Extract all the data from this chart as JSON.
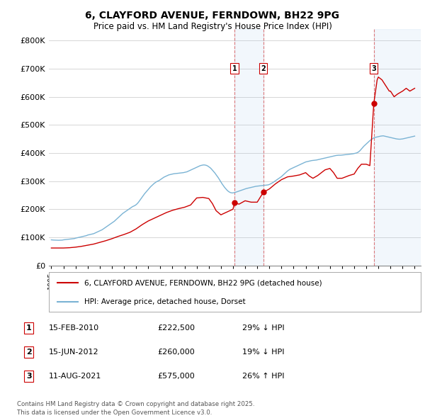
{
  "title": "6, CLAYFORD AVENUE, FERNDOWN, BH22 9PG",
  "subtitle": "Price paid vs. HM Land Registry's House Price Index (HPI)",
  "background_color": "#ffffff",
  "grid_color": "#d0d0d0",
  "ylim": [
    0,
    840000
  ],
  "yticks": [
    0,
    100000,
    200000,
    300000,
    400000,
    500000,
    600000,
    700000,
    800000
  ],
  "ytick_labels": [
    "£0",
    "£100K",
    "£200K",
    "£300K",
    "£400K",
    "£500K",
    "£600K",
    "£700K",
    "£800K"
  ],
  "hpi_color": "#7ab3d4",
  "sale_color": "#cc0000",
  "vline_color": "#cc0000",
  "span_color": "#ddeeff",
  "transactions": [
    {
      "id": 1,
      "date_num": 2010.12,
      "price": 222500
    },
    {
      "id": 2,
      "date_num": 2012.5,
      "price": 260000
    },
    {
      "id": 3,
      "date_num": 2021.62,
      "price": 575000
    }
  ],
  "hpi_x": [
    1995.0,
    1995.1,
    1995.2,
    1995.3,
    1995.4,
    1995.5,
    1995.6,
    1995.7,
    1995.8,
    1995.9,
    1996.0,
    1996.1,
    1996.2,
    1996.3,
    1996.4,
    1996.5,
    1996.6,
    1996.7,
    1996.8,
    1996.9,
    1997.0,
    1997.1,
    1997.2,
    1997.3,
    1997.4,
    1997.5,
    1997.6,
    1997.7,
    1997.8,
    1997.9,
    1998.0,
    1998.1,
    1998.2,
    1998.3,
    1998.4,
    1998.5,
    1998.6,
    1998.7,
    1998.8,
    1998.9,
    1999.0,
    1999.1,
    1999.2,
    1999.3,
    1999.4,
    1999.5,
    1999.6,
    1999.7,
    1999.8,
    1999.9,
    2000.0,
    2000.1,
    2000.2,
    2000.3,
    2000.4,
    2000.5,
    2000.6,
    2000.7,
    2000.8,
    2000.9,
    2001.0,
    2001.1,
    2001.2,
    2001.3,
    2001.4,
    2001.5,
    2001.6,
    2001.7,
    2001.8,
    2001.9,
    2002.0,
    2002.1,
    2002.2,
    2002.3,
    2002.4,
    2002.5,
    2002.6,
    2002.7,
    2002.8,
    2002.9,
    2003.0,
    2003.1,
    2003.2,
    2003.3,
    2003.4,
    2003.5,
    2003.6,
    2003.7,
    2003.8,
    2003.9,
    2004.0,
    2004.1,
    2004.2,
    2004.3,
    2004.4,
    2004.5,
    2004.6,
    2004.7,
    2004.8,
    2004.9,
    2005.0,
    2005.1,
    2005.2,
    2005.3,
    2005.4,
    2005.5,
    2005.6,
    2005.7,
    2005.8,
    2005.9,
    2006.0,
    2006.1,
    2006.2,
    2006.3,
    2006.4,
    2006.5,
    2006.6,
    2006.7,
    2006.8,
    2006.9,
    2007.0,
    2007.1,
    2007.2,
    2007.3,
    2007.4,
    2007.5,
    2007.6,
    2007.7,
    2007.8,
    2007.9,
    2008.0,
    2008.1,
    2008.2,
    2008.3,
    2008.4,
    2008.5,
    2008.6,
    2008.7,
    2008.8,
    2008.9,
    2009.0,
    2009.1,
    2009.2,
    2009.3,
    2009.4,
    2009.5,
    2009.6,
    2009.7,
    2009.8,
    2009.9,
    2010.0,
    2010.1,
    2010.2,
    2010.3,
    2010.4,
    2010.5,
    2010.6,
    2010.7,
    2010.8,
    2010.9,
    2011.0,
    2011.1,
    2011.2,
    2011.3,
    2011.4,
    2011.5,
    2011.6,
    2011.7,
    2011.8,
    2011.9,
    2012.0,
    2012.1,
    2012.2,
    2012.3,
    2012.4,
    2012.5,
    2012.6,
    2012.7,
    2012.8,
    2012.9,
    2013.0,
    2013.1,
    2013.2,
    2013.3,
    2013.4,
    2013.5,
    2013.6,
    2013.7,
    2013.8,
    2013.9,
    2014.0,
    2014.1,
    2014.2,
    2014.3,
    2014.4,
    2014.5,
    2014.6,
    2014.7,
    2014.8,
    2014.9,
    2015.0,
    2015.1,
    2015.2,
    2015.3,
    2015.4,
    2015.5,
    2015.6,
    2015.7,
    2015.8,
    2015.9,
    2016.0,
    2016.1,
    2016.2,
    2016.3,
    2016.4,
    2016.5,
    2016.6,
    2016.7,
    2016.8,
    2016.9,
    2017.0,
    2017.1,
    2017.2,
    2017.3,
    2017.4,
    2017.5,
    2017.6,
    2017.7,
    2017.8,
    2017.9,
    2018.0,
    2018.1,
    2018.2,
    2018.3,
    2018.4,
    2018.5,
    2018.6,
    2018.7,
    2018.8,
    2018.9,
    2019.0,
    2019.1,
    2019.2,
    2019.3,
    2019.4,
    2019.5,
    2019.6,
    2019.7,
    2019.8,
    2019.9,
    2020.0,
    2020.1,
    2020.2,
    2020.3,
    2020.4,
    2020.5,
    2020.6,
    2020.7,
    2020.8,
    2020.9,
    2021.0,
    2021.1,
    2021.2,
    2021.3,
    2021.4,
    2021.5,
    2021.6,
    2021.7,
    2021.8,
    2021.9,
    2022.0,
    2022.1,
    2022.2,
    2022.3,
    2022.4,
    2022.5,
    2022.6,
    2022.7,
    2022.8,
    2022.9,
    2023.0,
    2023.1,
    2023.2,
    2023.3,
    2023.4,
    2023.5,
    2023.6,
    2023.7,
    2023.8,
    2023.9,
    2024.0,
    2024.1,
    2024.2,
    2024.3,
    2024.4,
    2024.5,
    2024.6,
    2024.7,
    2024.8,
    2024.9,
    2025.0
  ],
  "hpi_y": [
    91000,
    90500,
    90200,
    90000,
    89800,
    89700,
    89500,
    89600,
    89800,
    90000,
    91000,
    91500,
    92000,
    92500,
    93000,
    93500,
    94000,
    94500,
    95000,
    95500,
    97000,
    98000,
    99000,
    100000,
    101000,
    102000,
    103000,
    104000,
    105000,
    106000,
    108000,
    109000,
    110000,
    111000,
    112000,
    113000,
    115000,
    117000,
    119000,
    121000,
    123000,
    125000,
    127000,
    130000,
    133000,
    136000,
    139000,
    142000,
    145000,
    148000,
    151000,
    154000,
    157000,
    161000,
    165000,
    169000,
    173000,
    177000,
    181000,
    185000,
    188000,
    191000,
    194000,
    197000,
    200000,
    203000,
    206000,
    209000,
    211000,
    213000,
    216000,
    220000,
    225000,
    231000,
    237000,
    243000,
    249000,
    255000,
    260000,
    265000,
    270000,
    275000,
    280000,
    284000,
    288000,
    292000,
    295000,
    298000,
    300000,
    302000,
    305000,
    308000,
    311000,
    314000,
    316000,
    318000,
    320000,
    322000,
    323000,
    324000,
    325000,
    326000,
    326500,
    327000,
    327500,
    328000,
    328500,
    329000,
    329500,
    330000,
    331000,
    332000,
    333000,
    335000,
    337000,
    339000,
    341000,
    343000,
    345000,
    347000,
    349000,
    351000,
    353000,
    355000,
    356000,
    357000,
    357500,
    357000,
    356000,
    354000,
    351000,
    348000,
    344000,
    339000,
    334000,
    329000,
    323000,
    317000,
    311000,
    304000,
    297000,
    290000,
    284000,
    278000,
    273000,
    268000,
    264000,
    261000,
    259000,
    258000,
    258000,
    259000,
    260000,
    261500,
    263000,
    264500,
    266000,
    267500,
    269000,
    270500,
    272000,
    273500,
    274500,
    275500,
    276500,
    277500,
    278500,
    279500,
    280500,
    281500,
    282000,
    282500,
    283000,
    283500,
    284000,
    284500,
    285000,
    285500,
    286000,
    286500,
    288000,
    290000,
    292500,
    295000,
    298000,
    301000,
    304000,
    307000,
    310000,
    313000,
    316000,
    320000,
    324000,
    328000,
    332000,
    336000,
    339000,
    342000,
    344000,
    346000,
    348000,
    350000,
    352000,
    354000,
    356000,
    358000,
    360000,
    362000,
    364000,
    366000,
    368000,
    369000,
    370000,
    371000,
    372000,
    373000,
    373500,
    374000,
    374500,
    375000,
    376000,
    377000,
    378000,
    379000,
    380000,
    381000,
    382000,
    383000,
    384000,
    385000,
    386000,
    387000,
    388000,
    389000,
    390000,
    391000,
    391500,
    392000,
    392000,
    392000,
    392500,
    393000,
    393500,
    394000,
    394500,
    395000,
    395500,
    396000,
    396500,
    397000,
    398000,
    399000,
    400000,
    402000,
    405000,
    409000,
    414000,
    419000,
    424000,
    428000,
    432000,
    436000,
    440000,
    444000,
    447000,
    450000,
    453000,
    455000,
    456000,
    457000,
    458000,
    459000,
    460000,
    460500,
    461000,
    460000,
    459000,
    458000,
    457000,
    456000,
    455000,
    454000,
    453000,
    452000,
    451000,
    450000,
    449500,
    449000,
    449000,
    449500,
    450000,
    451000,
    452000,
    453000,
    454000,
    455000,
    456000,
    457000,
    458000,
    459000,
    460000
  ],
  "sale_x": [
    1995.0,
    1995.5,
    1996.0,
    1996.5,
    1997.0,
    1997.5,
    1998.0,
    1998.5,
    1999.0,
    1999.5,
    2000.0,
    2000.5,
    2001.0,
    2001.5,
    2002.0,
    2002.5,
    2003.0,
    2003.5,
    2004.0,
    2004.5,
    2005.0,
    2005.5,
    2006.0,
    2006.5,
    2007.0,
    2007.5,
    2008.0,
    2008.3,
    2008.6,
    2009.0,
    2009.5,
    2010.0,
    2010.12,
    2010.5,
    2011.0,
    2011.5,
    2012.0,
    2012.5,
    2013.0,
    2013.5,
    2014.0,
    2014.5,
    2015.0,
    2015.5,
    2016.0,
    2016.3,
    2016.6,
    2017.0,
    2017.3,
    2017.6,
    2018.0,
    2018.3,
    2018.6,
    2019.0,
    2019.3,
    2019.6,
    2020.0,
    2020.3,
    2020.6,
    2021.0,
    2021.3,
    2021.62,
    2021.9,
    2022.0,
    2022.3,
    2022.6,
    2022.9,
    2023.0,
    2023.3,
    2023.6,
    2024.0,
    2024.3,
    2024.6,
    2025.0
  ],
  "sale_y": [
    62000,
    62000,
    62000,
    63000,
    65000,
    68000,
    72000,
    76000,
    82000,
    88000,
    95000,
    103000,
    110000,
    118000,
    130000,
    145000,
    158000,
    168000,
    178000,
    188000,
    196000,
    202000,
    207000,
    215000,
    240000,
    242000,
    238000,
    220000,
    195000,
    180000,
    190000,
    200000,
    222500,
    218000,
    230000,
    225000,
    225000,
    260000,
    272000,
    290000,
    305000,
    315000,
    318000,
    322000,
    330000,
    318000,
    310000,
    320000,
    330000,
    340000,
    345000,
    330000,
    310000,
    310000,
    315000,
    320000,
    325000,
    345000,
    360000,
    360000,
    355000,
    575000,
    660000,
    670000,
    660000,
    640000,
    620000,
    620000,
    600000,
    610000,
    620000,
    630000,
    620000,
    630000
  ],
  "xtick_years": [
    1995,
    1996,
    1997,
    1998,
    1999,
    2000,
    2001,
    2002,
    2003,
    2004,
    2005,
    2006,
    2007,
    2008,
    2009,
    2010,
    2011,
    2012,
    2013,
    2014,
    2015,
    2016,
    2017,
    2018,
    2019,
    2020,
    2021,
    2022,
    2023,
    2024,
    2025
  ],
  "legend_line1": "6, CLAYFORD AVENUE, FERNDOWN, BH22 9PG (detached house)",
  "legend_line2": "HPI: Average price, detached house, Dorset",
  "table_entries": [
    {
      "id": 1,
      "date": "15-FEB-2010",
      "price": "£222,500",
      "change": "29% ↓ HPI"
    },
    {
      "id": 2,
      "date": "15-JUN-2012",
      "price": "£260,000",
      "change": "19% ↓ HPI"
    },
    {
      "id": 3,
      "date": "11-AUG-2021",
      "price": "£575,000",
      "change": "26% ↑ HPI"
    }
  ],
  "footer": "Contains HM Land Registry data © Crown copyright and database right 2025.\nThis data is licensed under the Open Government Licence v3.0."
}
